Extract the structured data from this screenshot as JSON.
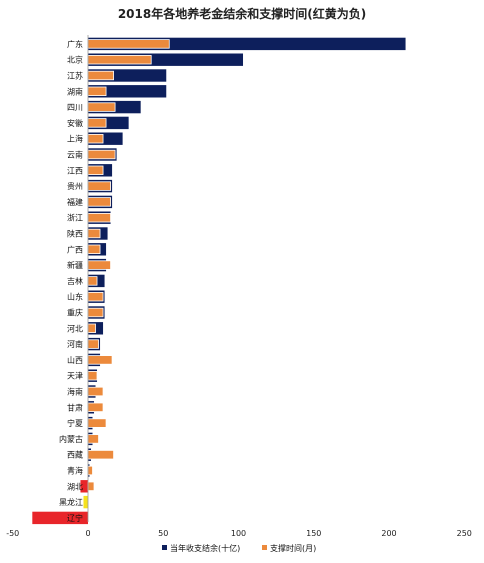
{
  "chart_data": {
    "type": "bar",
    "orientation": "horizontal",
    "title": "2018年各地养老金结余和支撑时间(红黄为负)",
    "categories": [
      "广东",
      "北京",
      "江苏",
      "湖南",
      "四川",
      "安徽",
      "上海",
      "云南",
      "江西",
      "贵州",
      "福建",
      "浙江",
      "陕西",
      "广西",
      "新疆",
      "吉林",
      "山东",
      "重庆",
      "河北",
      "河南",
      "山西",
      "天津",
      "海南",
      "甘肃",
      "宁夏",
      "内蒙古",
      "西藏",
      "青海",
      "湖北",
      "黑龙江",
      "辽宁"
    ],
    "series": [
      {
        "name": "当年收支结余(十亿)",
        "color": "#0d1f5c",
        "values": [
          211,
          103,
          52,
          52,
          35,
          27,
          23,
          19,
          16,
          16,
          16,
          15,
          13,
          12,
          12,
          11,
          11,
          11,
          10,
          8,
          8,
          6,
          5,
          4,
          3,
          3,
          2,
          1,
          -5,
          -3,
          -37
        ]
      },
      {
        "name": "支撑时间(月)",
        "color": "#ec8a3c",
        "values": [
          54,
          42,
          17,
          12,
          18,
          12,
          10,
          18,
          10,
          15,
          15,
          15,
          8,
          8,
          15,
          6,
          10,
          10,
          5,
          7,
          16,
          6,
          10,
          10,
          12,
          7,
          17,
          3,
          4,
          0,
          0
        ]
      }
    ],
    "negative_colors": {
      "湖北": "#e8252a",
      "黑龙江": "#f5e11c",
      "辽宁": "#e8252a"
    },
    "xlim": [
      -50,
      250
    ],
    "xticks": [
      "-50",
      "0",
      "50",
      "100",
      "150",
      "200",
      "250"
    ],
    "legend_position": "bottom-right",
    "grid": false
  }
}
